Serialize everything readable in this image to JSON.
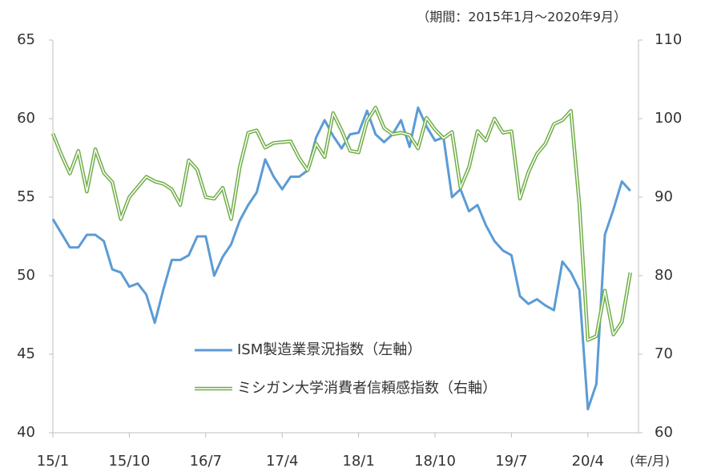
{
  "chart_data": {
    "type": "line",
    "subtitle": "（期間：2015年1月～2020年9月）",
    "x_label": "(年/月)",
    "categories": [
      "15/1",
      null,
      null,
      null,
      null,
      null,
      null,
      null,
      null,
      "15/10",
      null,
      null,
      null,
      null,
      null,
      null,
      null,
      null,
      "16/7",
      null,
      null,
      null,
      null,
      null,
      null,
      null,
      null,
      "17/4",
      null,
      null,
      null,
      null,
      null,
      null,
      null,
      null,
      "18/1",
      null,
      null,
      null,
      null,
      null,
      null,
      null,
      null,
      "18/10",
      null,
      null,
      null,
      null,
      null,
      null,
      null,
      null,
      "19/7",
      null,
      null,
      null,
      null,
      null,
      null,
      null,
      null,
      "20/4",
      null,
      null,
      null,
      null,
      null
    ],
    "series": [
      {
        "name": "ISM製造業景況指数（左軸）",
        "color": "#5b9bd5",
        "axis": "y",
        "values": [
          53.6,
          52.7,
          51.8,
          51.8,
          52.6,
          52.6,
          52.2,
          50.4,
          50.2,
          49.3,
          49.5,
          48.8,
          47.0,
          49.1,
          51.0,
          51.0,
          51.3,
          52.5,
          52.5,
          50.0,
          51.2,
          52.0,
          53.5,
          54.5,
          55.3,
          57.4,
          56.3,
          55.5,
          56.3,
          56.3,
          56.7,
          58.8,
          59.9,
          58.9,
          58.1,
          59.0,
          59.1,
          60.5,
          59.0,
          58.5,
          59.0,
          59.9,
          58.2,
          60.7,
          59.5,
          58.6,
          58.8,
          55.0,
          55.5,
          54.1,
          54.5,
          53.2,
          52.2,
          51.6,
          51.3,
          48.7,
          48.2,
          48.5,
          48.1,
          47.8,
          50.9,
          50.2,
          49.1,
          41.5,
          43.1,
          52.6,
          54.2,
          56.0,
          55.4
        ]
      },
      {
        "name": "ミシガン大学消費者信頼感指数（右軸）",
        "color": "#70ad47",
        "axis": "y2",
        "values": [
          98.1,
          95.4,
          93.0,
          95.9,
          90.7,
          96.1,
          93.1,
          91.9,
          87.2,
          90.0,
          91.3,
          92.6,
          92.0,
          91.7,
          91.0,
          89.0,
          94.7,
          93.5,
          90.0,
          89.8,
          91.2,
          87.2,
          93.8,
          98.2,
          98.5,
          96.3,
          96.9,
          97.0,
          97.1,
          95.0,
          93.4,
          96.8,
          95.1,
          100.7,
          98.5,
          95.9,
          95.7,
          99.7,
          101.4,
          98.8,
          98.0,
          98.2,
          97.9,
          96.2,
          100.1,
          98.6,
          97.5,
          98.3,
          91.2,
          93.8,
          98.4,
          97.2,
          100.0,
          98.2,
          98.4,
          89.8,
          93.2,
          95.5,
          96.8,
          99.3,
          99.8,
          101.0,
          89.1,
          71.8,
          72.3,
          78.1,
          72.5,
          74.1,
          80.4
        ]
      }
    ],
    "ylim": [
      40,
      65
    ],
    "yticks": [
      40,
      45,
      50,
      55,
      60,
      65
    ],
    "y2lim": [
      60,
      110
    ],
    "y2ticks": [
      60,
      70,
      80,
      90,
      100,
      110
    ],
    "grid": false
  }
}
